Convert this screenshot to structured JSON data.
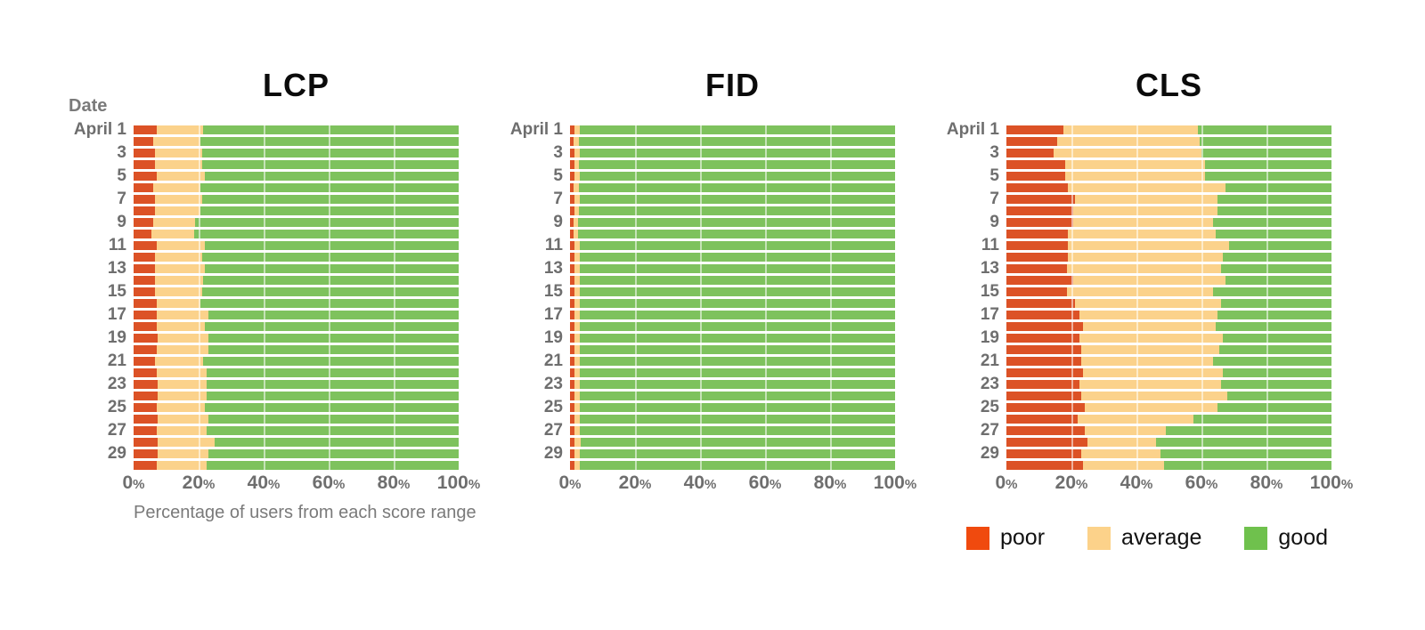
{
  "colors": {
    "bar_poor": "#DC5226",
    "bar_average": "#FBD28B",
    "bar_good": "#7EC25D",
    "legend_poor": "#F04A0E",
    "legend_average": "#FCD28A",
    "legend_good": "#6FC14D"
  },
  "y_axis_header": "Date",
  "x_axis_caption": "Percentage of users from each score range",
  "legend": [
    {
      "label": "poor",
      "color_key": "legend_poor"
    },
    {
      "label": "average",
      "color_key": "legend_average"
    },
    {
      "label": "good",
      "color_key": "legend_good"
    }
  ],
  "chart_data": [
    {
      "type": "bar",
      "orientation": "horizontal-stacked",
      "title": "LCP",
      "n_bars": 30,
      "y_tick_labels": [
        "April 1",
        "3",
        "5",
        "7",
        "9",
        "11",
        "13",
        "15",
        "17",
        "19",
        "21",
        "23",
        "25",
        "27",
        "29"
      ],
      "x_ticks": [
        0,
        20,
        40,
        60,
        80,
        100
      ],
      "xlim": [
        0,
        100
      ],
      "series": [
        {
          "name": "poor",
          "values": [
            7,
            6,
            6.5,
            6.5,
            7,
            6,
            6.5,
            6.5,
            6,
            5.5,
            7,
            6.5,
            6.5,
            6.5,
            6.5,
            7,
            7,
            7,
            7.5,
            7,
            6.5,
            7,
            7.5,
            7.5,
            7,
            7.5,
            7,
            7.5,
            7.5,
            7
          ]
        },
        {
          "name": "average",
          "values": [
            14.5,
            14.5,
            14.5,
            14.5,
            15,
            14.5,
            14.5,
            14,
            13,
            13,
            15,
            14.5,
            15.5,
            15,
            14.5,
            13.5,
            16,
            15,
            15.5,
            16,
            15,
            15.5,
            15,
            15,
            15,
            15.5,
            15.5,
            17.5,
            15.5,
            15.5
          ]
        },
        {
          "name": "good",
          "values": [
            78.5,
            79.5,
            79,
            79,
            78,
            79.5,
            79,
            79.5,
            81,
            81.5,
            78,
            79,
            78,
            78.5,
            79,
            79.5,
            77,
            78,
            77,
            77,
            78.5,
            77.5,
            77.5,
            77.5,
            78,
            77,
            77.5,
            75,
            77,
            77.5
          ]
        }
      ]
    },
    {
      "type": "bar",
      "orientation": "horizontal-stacked",
      "title": "FID",
      "n_bars": 30,
      "y_tick_labels": [
        "April 1",
        "3",
        "5",
        "7",
        "9",
        "11",
        "13",
        "15",
        "17",
        "19",
        "21",
        "23",
        "25",
        "27",
        "29"
      ],
      "x_ticks": [
        0,
        20,
        40,
        60,
        80,
        100
      ],
      "xlim": [
        0,
        100
      ],
      "series": [
        {
          "name": "poor",
          "values": [
            1.4,
            1.2,
            1.3,
            1.3,
            1.4,
            1.2,
            1.3,
            1.3,
            1.2,
            1.2,
            1.4,
            1.3,
            1.3,
            1.3,
            1.3,
            1.4,
            1.3,
            1.3,
            1.4,
            1.3,
            1.3,
            1.3,
            1.4,
            1.4,
            1.3,
            1.4,
            1.3,
            1.4,
            1.4,
            1.3
          ]
        },
        {
          "name": "average",
          "values": [
            1.6,
            1.5,
            1.6,
            1.5,
            1.7,
            1.5,
            1.6,
            1.5,
            1.4,
            1.4,
            1.7,
            1.6,
            1.6,
            1.6,
            1.6,
            1.5,
            1.7,
            1.6,
            1.7,
            1.7,
            1.6,
            1.7,
            1.7,
            1.6,
            1.6,
            1.7,
            1.6,
            1.8,
            1.7,
            1.6
          ]
        },
        {
          "name": "good",
          "values": [
            97,
            97.3,
            97.1,
            97.2,
            96.9,
            97.3,
            97.1,
            97.2,
            97.4,
            97.4,
            96.9,
            97.1,
            97.1,
            97.1,
            97.1,
            97.1,
            97,
            97.1,
            96.9,
            97,
            97.1,
            97,
            96.9,
            97,
            97.1,
            96.9,
            97.1,
            96.8,
            96.9,
            97.1
          ]
        }
      ]
    },
    {
      "type": "bar",
      "orientation": "horizontal-stacked",
      "title": "CLS",
      "n_bars": 30,
      "y_tick_labels": [
        "April 1",
        "3",
        "5",
        "7",
        "9",
        "11",
        "13",
        "15",
        "17",
        "19",
        "21",
        "23",
        "25",
        "27",
        "29"
      ],
      "x_ticks": [
        0,
        20,
        40,
        60,
        80,
        100
      ],
      "xlim": [
        0,
        100
      ],
      "series": [
        {
          "name": "poor",
          "values": [
            17.5,
            15.5,
            14.5,
            18,
            18,
            19,
            21,
            20.5,
            20.5,
            19,
            19,
            19,
            18.5,
            20.5,
            18.5,
            21,
            22.5,
            23.5,
            22.5,
            23,
            23,
            23.5,
            22.5,
            23,
            24,
            22,
            24,
            25,
            23,
            23.5
          ]
        },
        {
          "name": "average",
          "values": [
            41.5,
            44,
            45.5,
            43,
            43,
            48.5,
            44,
            44.5,
            43,
            45.5,
            49.5,
            47.5,
            47.5,
            47,
            45,
            45,
            42.5,
            41,
            44,
            42.5,
            40.5,
            43,
            43.5,
            45,
            41,
            35.5,
            25,
            21,
            24.5,
            25
          ]
        },
        {
          "name": "good",
          "values": [
            41,
            40.5,
            40,
            39,
            39,
            32.5,
            35,
            35,
            36.5,
            35.5,
            31.5,
            33.5,
            34,
            32.5,
            36.5,
            34,
            35,
            35.5,
            33.5,
            34.5,
            36.5,
            33.5,
            34,
            32,
            35,
            42.5,
            51,
            54,
            52.5,
            51.5
          ]
        }
      ]
    }
  ]
}
